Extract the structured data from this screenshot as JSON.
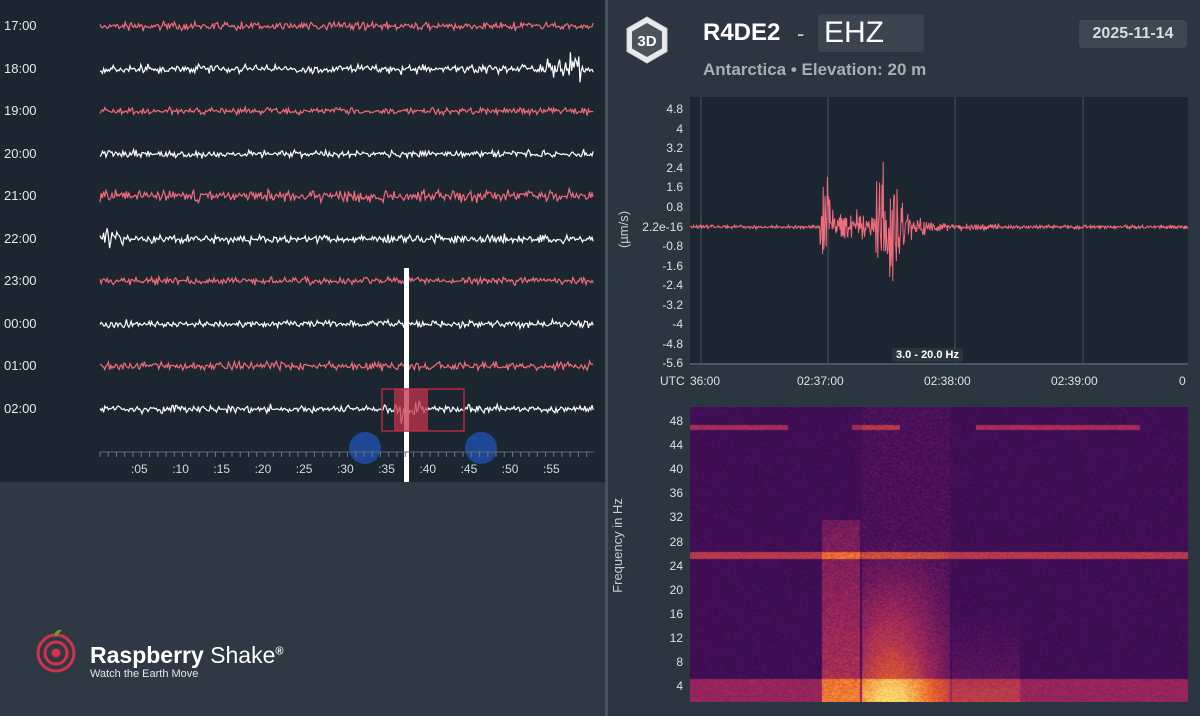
{
  "helicorder": {
    "hour_labels": [
      "17:00",
      "18:00",
      "19:00",
      "20:00",
      "21:00",
      "22:00",
      "23:00",
      "00:00",
      "01:00",
      "02:00"
    ],
    "minute_labels": [
      ":05",
      ":10",
      ":15",
      ":20",
      ":25",
      ":30",
      ":35",
      ":40",
      ":45",
      ":50",
      ":55"
    ],
    "trace_colors": [
      "#f06b7c",
      "#ffffff"
    ]
  },
  "logo": {
    "brand_bold": "Raspberry",
    "brand_light": "Shake",
    "registered": "®",
    "tagline": "Watch the Earth Move"
  },
  "header": {
    "badge": "3D",
    "station": "R4DE2",
    "separator": "-",
    "channel": "EHZ",
    "date": "2025-11-14",
    "location": "Antarctica • Elevation: 20 m"
  },
  "waveform": {
    "y_ticks": [
      "4.8",
      "4",
      "3.2",
      "2.4",
      "1.6",
      "0.8",
      "2.2e-16",
      "-0.8",
      "-1.6",
      "-2.4",
      "-3.2",
      "-4",
      "-4.8",
      "-5.6"
    ],
    "y_axis_title": "(µm/s)",
    "x_ticks": [
      "UTC",
      "36:00",
      "02:37:00",
      "02:38:00",
      "02:39:00",
      "0"
    ],
    "filter_label": "3.0 - 20.0 Hz",
    "trace_color": "#f06b7c"
  },
  "spectrogram": {
    "y_ticks": [
      "48",
      "44",
      "40",
      "36",
      "32",
      "28",
      "24",
      "20",
      "16",
      "12",
      "8",
      "4"
    ],
    "y_axis_title": "Frequency in Hz"
  }
}
